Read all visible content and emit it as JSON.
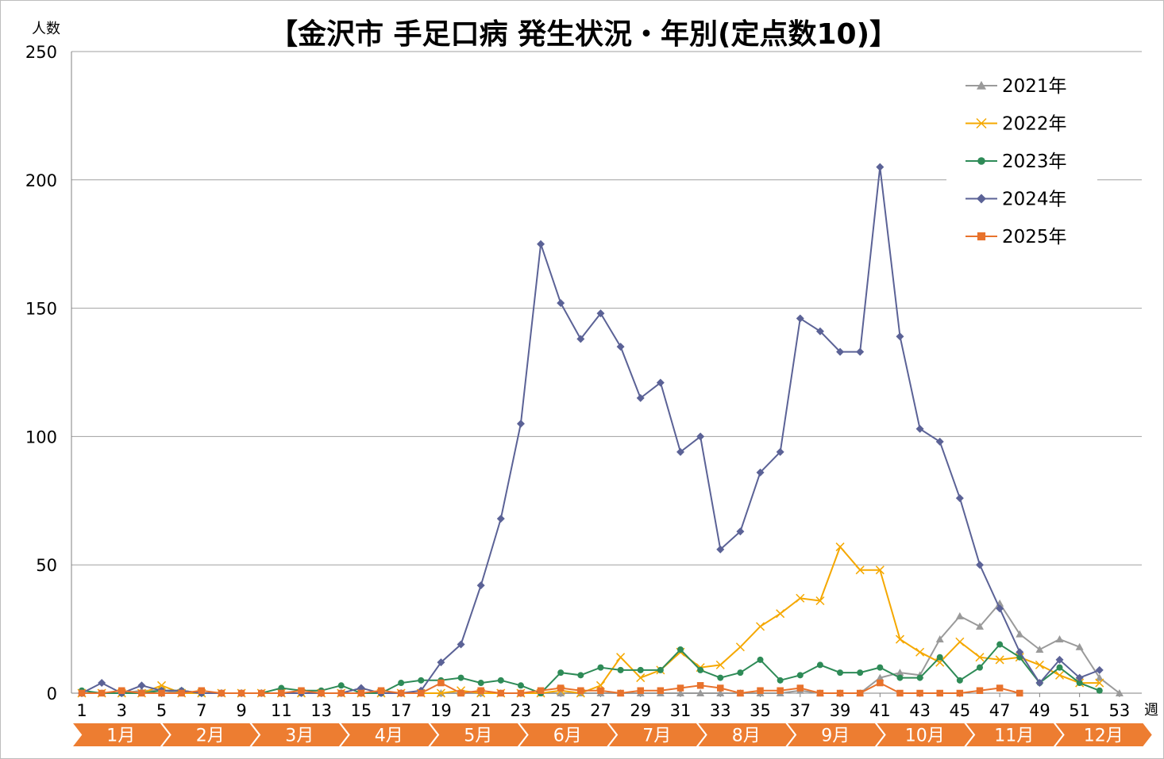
{
  "chart_data": {
    "type": "line",
    "title": "【金沢市 手足口病 発生状況・年別(定点数10)】",
    "ylabel": "人数",
    "xlabel": "週",
    "ylim": [
      0,
      250
    ],
    "yticks": [
      "0",
      "50",
      "100",
      "150",
      "200",
      "250"
    ],
    "xticks": [
      "1",
      "3",
      "5",
      "7",
      "9",
      "11",
      "13",
      "15",
      "17",
      "19",
      "21",
      "23",
      "25",
      "27",
      "29",
      "31",
      "33",
      "35",
      "37",
      "39",
      "41",
      "43",
      "45",
      "47",
      "49",
      "51",
      "53"
    ],
    "months": [
      "1月",
      "2月",
      "3月",
      "4月",
      "5月",
      "6月",
      "7月",
      "8月",
      "9月",
      "10月",
      "11月",
      "12月"
    ],
    "month_start_weeks": [
      1,
      5.3,
      9.6,
      13.9,
      18.2,
      22.5,
      26.8,
      31.1,
      35.4,
      39.7,
      44.0,
      48.3,
      52.6
    ],
    "grid": true,
    "legend_position": "top-right",
    "series": [
      {
        "name": "2021年",
        "color": "#9a9a9a",
        "marker": "triangle",
        "values": [
          0,
          0,
          0,
          1,
          1,
          0,
          0,
          0,
          0,
          0,
          0,
          0,
          0,
          0,
          0,
          0,
          0,
          0,
          0,
          0,
          0,
          0,
          0,
          0,
          0,
          0,
          0,
          0,
          0,
          0,
          0,
          0,
          0,
          0,
          0,
          0,
          1,
          0,
          0,
          0,
          6,
          8,
          7,
          21,
          30,
          26,
          35,
          23,
          17,
          21,
          18,
          6,
          0
        ]
      },
      {
        "name": "2022年",
        "color": "#f5a800",
        "marker": "x",
        "values": [
          0,
          0,
          0,
          0,
          3,
          0,
          0,
          0,
          0,
          0,
          0,
          0,
          0,
          0,
          0,
          0,
          0,
          0,
          0,
          1,
          0,
          0,
          0,
          0,
          1,
          0,
          3,
          14,
          6,
          9,
          16,
          10,
          11,
          18,
          26,
          31,
          37,
          36,
          57,
          48,
          48,
          21,
          16,
          12,
          20,
          14,
          13,
          14,
          11,
          7,
          4,
          4,
          null
        ]
      },
      {
        "name": "2023年",
        "color": "#2e8b57",
        "marker": "circle",
        "values": [
          1,
          0,
          0,
          0,
          1,
          1,
          0,
          0,
          0,
          0,
          2,
          1,
          1,
          3,
          0,
          0,
          4,
          5,
          5,
          6,
          4,
          5,
          3,
          0,
          8,
          7,
          10,
          9,
          9,
          9,
          17,
          9,
          6,
          8,
          13,
          5,
          7,
          11,
          8,
          8,
          10,
          6,
          6,
          14,
          5,
          10,
          19,
          14,
          4,
          10,
          4,
          1,
          null
        ]
      },
      {
        "name": "2024年",
        "color": "#5b6296",
        "marker": "diamond",
        "values": [
          0,
          4,
          0,
          3,
          1,
          1,
          0,
          0,
          0,
          0,
          0,
          0,
          0,
          0,
          2,
          0,
          0,
          1,
          12,
          19,
          42,
          68,
          105,
          175,
          152,
          138,
          148,
          135,
          115,
          121,
          94,
          100,
          56,
          63,
          86,
          94,
          146,
          141,
          133,
          133,
          205,
          139,
          103,
          98,
          76,
          50,
          33,
          16,
          4,
          13,
          6,
          9,
          null
        ]
      },
      {
        "name": "2025年",
        "color": "#e8722c",
        "marker": "square",
        "values": [
          0,
          0,
          1,
          0,
          0,
          0,
          1,
          0,
          0,
          0,
          0,
          1,
          0,
          0,
          0,
          1,
          0,
          0,
          4,
          0,
          1,
          0,
          0,
          1,
          2,
          1,
          1,
          0,
          1,
          1,
          2,
          3,
          2,
          0,
          1,
          1,
          2,
          0,
          0,
          0,
          4,
          0,
          0,
          0,
          0,
          1,
          2,
          0,
          null,
          null,
          null,
          null,
          null
        ]
      }
    ]
  }
}
